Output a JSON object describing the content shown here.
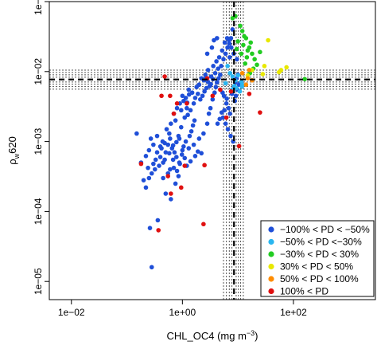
{
  "chart_data": {
    "type": "scatter",
    "xlabel": "CHL_OC4 (mg m",
    "xlabel_sup": "−3",
    "xlabel_close": ")",
    "ylabel_main": "ρ",
    "ylabel_sub": "w",
    "ylabel_tail": "620",
    "x_scale": "log",
    "y_scale": "log",
    "xlim": [
      0.004,
      3000
    ],
    "ylim": [
      5.5e-06,
      0.1
    ],
    "x_ticks": [
      {
        "value": 0.01,
        "label": "1e−02"
      },
      {
        "value": 1,
        "label": "1e+00"
      },
      {
        "value": 100,
        "label": "1e+02"
      }
    ],
    "y_ticks": [
      {
        "value": 1e-05,
        "label": "1e−05"
      },
      {
        "value": 0.0001,
        "label": "1e−04"
      },
      {
        "value": 0.001,
        "label": "1e−03"
      },
      {
        "value": 0.01,
        "label": "1e−02"
      },
      {
        "value": 0.1,
        "label": "1e−01"
      }
    ],
    "grid": false,
    "legend_position": "bottom-right",
    "reference_lines": {
      "vertical_dashed": 8.5,
      "vertical_dotted": [
        5.5,
        6.2,
        7.0,
        7.8,
        9.3,
        10.2,
        11.2,
        12.5
      ],
      "horizontal_dashed": 0.0077,
      "horizontal_dotted": [
        0.0056,
        0.0061,
        0.0066,
        0.0071,
        0.0083,
        0.009,
        0.0097,
        0.0105
      ]
    },
    "series": [
      {
        "name": "−100% < PD < −50%",
        "color": "#1f4fd8",
        "points": [
          [
            0.15,
            0.0013
          ],
          [
            0.2,
            0.00028
          ],
          [
            0.25,
            0.0003
          ],
          [
            0.22,
            0.00022
          ],
          [
            0.28,
            0.00035
          ],
          [
            0.3,
            0.0009
          ],
          [
            0.35,
            0.0012
          ],
          [
            0.4,
            0.0006
          ],
          [
            0.45,
            0.0005
          ],
          [
            0.5,
            0.0007
          ],
          [
            0.55,
            0.0009
          ],
          [
            0.6,
            0.0011
          ],
          [
            0.32,
            0.0004
          ],
          [
            0.38,
            0.00045
          ],
          [
            0.42,
            0.0008
          ],
          [
            0.48,
            0.00095
          ],
          [
            0.52,
            0.0015
          ],
          [
            0.58,
            0.0013
          ],
          [
            0.62,
            0.0018
          ],
          [
            0.7,
            0.0025
          ],
          [
            0.75,
            0.002
          ],
          [
            0.8,
            0.003
          ],
          [
            0.9,
            0.0035
          ],
          [
            1.0,
            0.0045
          ],
          [
            1.2,
            0.003
          ],
          [
            1.3,
            0.0055
          ],
          [
            1.5,
            0.005
          ],
          [
            1.8,
            0.006
          ],
          [
            2.0,
            0.0065
          ],
          [
            2.2,
            0.008
          ],
          [
            0.65,
            0.0008
          ],
          [
            0.72,
            0.0007
          ],
          [
            0.85,
            0.0012
          ],
          [
            0.95,
            0.0016
          ],
          [
            1.1,
            0.0022
          ],
          [
            1.25,
            0.0024
          ],
          [
            1.4,
            0.0028
          ],
          [
            1.6,
            0.0035
          ],
          [
            1.7,
            0.0042
          ],
          [
            1.9,
            0.0048
          ],
          [
            0.68,
            0.00055
          ],
          [
            0.78,
            0.0006
          ],
          [
            0.88,
            0.0005
          ],
          [
            0.98,
            0.00065
          ],
          [
            1.05,
            0.00085
          ],
          [
            1.15,
            0.001
          ],
          [
            1.35,
            0.0012
          ],
          [
            1.45,
            0.0014
          ],
          [
            1.55,
            0.0017
          ],
          [
            1.65,
            0.002
          ],
          [
            0.45,
            0.0003
          ],
          [
            0.55,
            0.00035
          ],
          [
            0.6,
            0.0004
          ],
          [
            0.7,
            0.00042
          ],
          [
            0.8,
            0.00038
          ],
          [
            0.9,
            0.00048
          ],
          [
            1.0,
            0.00075
          ],
          [
            1.1,
            0.00058
          ],
          [
            0.62,
            0.00015
          ],
          [
            0.75,
            0.00025
          ],
          [
            0.26,
            5.8e-05
          ],
          [
            0.28,
            1.6e-05
          ],
          [
            0.36,
            7.5e-05
          ],
          [
            0.5,
            0.00018
          ],
          [
            0.85,
            0.00032
          ],
          [
            1.3,
            0.0008
          ],
          [
            1.6,
            0.0009
          ],
          [
            2.0,
            0.0011
          ],
          [
            2.4,
            0.0013
          ],
          [
            2.8,
            0.0018
          ],
          [
            3.0,
            0.0025
          ],
          [
            3.2,
            0.003
          ],
          [
            3.5,
            0.004
          ],
          [
            3.8,
            0.005
          ],
          [
            4.0,
            0.006
          ],
          [
            4.2,
            0.007
          ],
          [
            4.5,
            0.008
          ],
          [
            4.8,
            0.009
          ],
          [
            5.0,
            0.012
          ],
          [
            5.5,
            0.015
          ],
          [
            6.0,
            0.018
          ],
          [
            6.5,
            0.022
          ],
          [
            7.0,
            0.025
          ],
          [
            7.5,
            0.03
          ],
          [
            8.0,
            0.04
          ],
          [
            3.6,
            0.012
          ],
          [
            4.1,
            0.014
          ],
          [
            4.6,
            0.016
          ],
          [
            5.2,
            0.02
          ],
          [
            5.8,
            0.026
          ],
          [
            2.6,
            0.009
          ],
          [
            2.9,
            0.0105
          ],
          [
            3.3,
            0.0085
          ],
          [
            3.9,
            0.0095
          ],
          [
            4.4,
            0.011
          ],
          [
            2.1,
            0.004
          ],
          [
            2.3,
            0.0045
          ],
          [
            2.5,
            0.0052
          ],
          [
            2.7,
            0.0058
          ],
          [
            3.1,
            0.0062
          ],
          [
            5.3,
            0.005
          ],
          [
            5.6,
            0.0045
          ],
          [
            6.2,
            0.0035
          ],
          [
            6.8,
            0.003
          ],
          [
            7.2,
            0.0025
          ],
          [
            5.4,
            0.0022
          ],
          [
            6.0,
            0.0018
          ],
          [
            6.6,
            0.0015
          ],
          [
            7.4,
            0.0012
          ],
          [
            8.2,
            0.001
          ],
          [
            4.3,
            0.0018
          ],
          [
            4.7,
            0.0021
          ],
          [
            5.1,
            0.0026
          ],
          [
            5.7,
            0.0028
          ],
          [
            6.3,
            0.0041
          ],
          [
            8.5,
            0.006
          ],
          [
            9.0,
            0.007
          ],
          [
            9.5,
            0.008
          ],
          [
            10.0,
            0.009
          ],
          [
            10.5,
            0.0065
          ],
          [
            9.2,
            0.0045
          ],
          [
            9.8,
            0.0055
          ],
          [
            11.0,
            0.0068
          ],
          [
            8.8,
            0.0038
          ],
          [
            7.8,
            0.0048
          ],
          [
            1.2,
            0.00045
          ],
          [
            1.4,
            0.00052
          ],
          [
            1.7,
            0.00062
          ],
          [
            1.9,
            0.00072
          ],
          [
            2.2,
            0.00068
          ],
          [
            0.48,
            0.00055
          ],
          [
            0.58,
            0.00068
          ],
          [
            0.68,
            0.00088
          ],
          [
            0.78,
            0.00098
          ],
          [
            0.88,
            0.0011
          ],
          [
            0.35,
            0.0007
          ],
          [
            0.4,
            0.00085
          ],
          [
            0.44,
            0.001
          ],
          [
            0.33,
            0.00055
          ],
          [
            0.3,
            0.00048
          ],
          [
            0.22,
            0.00062
          ],
          [
            0.25,
            0.00075
          ],
          [
            0.18,
            0.0005
          ],
          [
            0.27,
            0.0011
          ],
          [
            0.24,
            0.00042
          ],
          [
            3.4,
            0.022
          ],
          [
            3.7,
            0.028
          ],
          [
            4.2,
            0.03
          ],
          [
            2.8,
            0.018
          ],
          [
            6.4,
            0.03
          ],
          [
            6.9,
            0.028
          ],
          [
            7.6,
            0.022
          ],
          [
            8.4,
            0.018
          ],
          [
            9.6,
            0.015
          ],
          [
            7.1,
            0.016
          ],
          [
            1.05,
            0.0038
          ],
          [
            1.15,
            0.0042
          ],
          [
            1.22,
            0.0036
          ],
          [
            0.95,
            0.0028
          ],
          [
            1.32,
            0.0047
          ],
          [
            2.45,
            0.0075
          ],
          [
            2.65,
            0.0082
          ],
          [
            2.9,
            0.0071
          ],
          [
            3.25,
            0.0066
          ],
          [
            3.55,
            0.0078
          ]
        ]
      },
      {
        "name": "−50% < PD <−30%",
        "color": "#29b6f0",
        "points": [
          [
            6.5,
            0.012
          ],
          [
            7.2,
            0.0095
          ],
          [
            8.0,
            0.0085
          ],
          [
            9.0,
            0.0075
          ],
          [
            10.0,
            0.0088
          ],
          [
            11.5,
            0.0072
          ],
          [
            12.0,
            0.0065
          ],
          [
            7.8,
            0.0055
          ],
          [
            8.6,
            0.0062
          ],
          [
            9.4,
            0.0058
          ],
          [
            6.0,
            0.0068
          ],
          [
            10.8,
            0.0052
          ],
          [
            11.8,
            0.0061
          ]
        ]
      },
      {
        "name": "−30% < PD < 30%",
        "color": "#22cc22",
        "points": [
          [
            8.0,
            0.058
          ],
          [
            9.0,
            0.062
          ],
          [
            11.0,
            0.045
          ],
          [
            12.0,
            0.038
          ],
          [
            13.0,
            0.032
          ],
          [
            14.0,
            0.03
          ],
          [
            15.0,
            0.02
          ],
          [
            16.0,
            0.022
          ],
          [
            18.0,
            0.018
          ],
          [
            20.0,
            0.015
          ],
          [
            22.0,
            0.0125
          ],
          [
            10.0,
            0.027
          ],
          [
            12.5,
            0.024
          ],
          [
            17.0,
            0.026
          ],
          [
            14.5,
            0.016
          ],
          [
            25.0,
            0.019
          ],
          [
            19.0,
            0.011
          ],
          [
            13.5,
            0.013
          ],
          [
            9.5,
            0.021
          ],
          [
            16.5,
            0.0095
          ],
          [
            160.0,
            0.0078
          ],
          [
            11.5,
            0.018
          ]
        ]
      },
      {
        "name": "30% < PD < 50%",
        "color": "#e8e800",
        "points": [
          [
            60.0,
            0.0105
          ],
          [
            75.0,
            0.0115
          ],
          [
            55.0,
            0.0098
          ],
          [
            35.0,
            0.028
          ],
          [
            30.0,
            0.012
          ],
          [
            28.0,
            0.0092
          ],
          [
            15.0,
            0.0088
          ],
          [
            18.0,
            0.0105
          ]
        ]
      },
      {
        "name": "50% < PD < 100%",
        "color": "#ff8c00",
        "points": [
          [
            12.0,
            0.0095
          ],
          [
            15.0,
            0.008
          ],
          [
            14.0,
            0.0065
          ],
          [
            18.0,
            0.0075
          ],
          [
            16.0,
            0.0105
          ]
        ]
      },
      {
        "name": "100% < PD",
        "color": "#e01010",
        "points": [
          [
            0.48,
            0.0085
          ],
          [
            0.42,
            0.0045
          ],
          [
            0.6,
            0.0045
          ],
          [
            0.8,
            0.0035
          ],
          [
            0.7,
            0.0025
          ],
          [
            0.18,
            0.00048
          ],
          [
            0.55,
            0.00032
          ],
          [
            0.62,
            0.00018
          ],
          [
            1.1,
            0.00045
          ],
          [
            2.5,
            0.00046
          ],
          [
            0.37,
            5.4e-05
          ],
          [
            2.4,
            6.6e-05
          ],
          [
            1.2,
            0.0035
          ],
          [
            2.8,
            0.008
          ],
          [
            7.5,
            0.0052
          ],
          [
            6.2,
            0.0022
          ],
          [
            3.5,
            0.0045
          ],
          [
            0.95,
            0.00022
          ],
          [
            16.0,
            0.0048
          ],
          [
            25.0,
            0.0026
          ],
          [
            10.5,
            0.00086
          ],
          [
            4.8,
            0.0055
          ]
        ]
      }
    ]
  }
}
